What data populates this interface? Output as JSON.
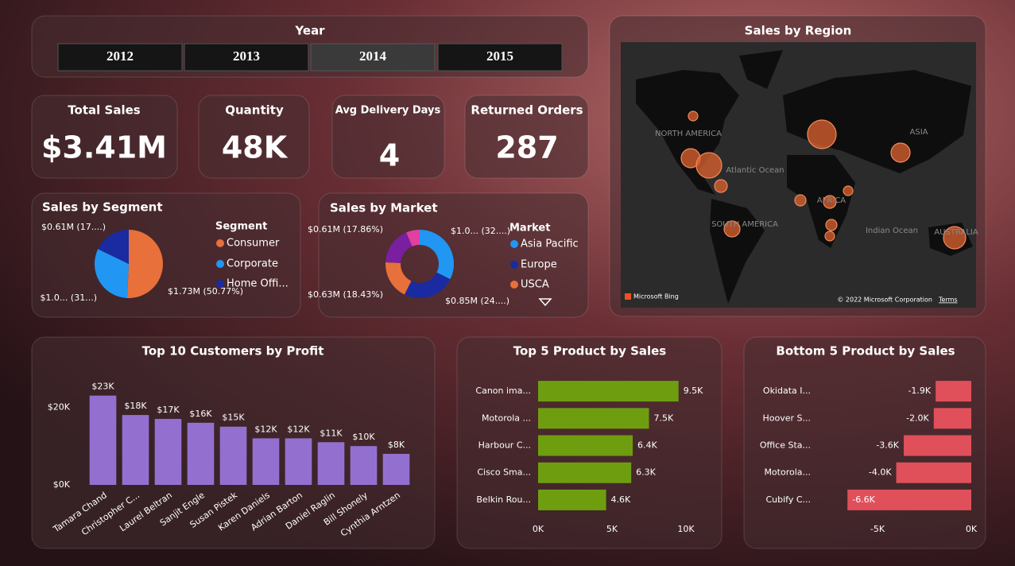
{
  "slicer": {
    "title": "Year",
    "options": [
      "2012",
      "2013",
      "2014",
      "2015"
    ],
    "selected_index": 2
  },
  "kpis": [
    {
      "title": "Total Sales",
      "value": "$3.41M"
    },
    {
      "title": "Quantity",
      "value": "48K"
    },
    {
      "title": "Avg Delivery Days",
      "value": "4"
    },
    {
      "title": "Returned Orders",
      "value": "287"
    }
  ],
  "map": {
    "title": "Sales by Region",
    "labels": [
      "NORTH AMERICA",
      "Atlantic Ocean",
      "ASIA",
      "AFRICA",
      "SOUTH AMERICA",
      "Indian Ocean",
      "AUSTRALIA"
    ],
    "attribution": "Microsoft Bing",
    "copyright": "© 2022 Microsoft Corporation",
    "terms": "Terms"
  },
  "chart_data": [
    {
      "type": "pie",
      "title": "Sales by Segment",
      "legend_title": "Segment",
      "categories": [
        "Consumer",
        "Corporate",
        "Home Offi..."
      ],
      "values": [
        50.77,
        31.4,
        17.83
      ],
      "value_labels": [
        "$1.73M (50.77%)",
        "$1.0... (31...)",
        "$0.61M (17....)"
      ],
      "colors": [
        "#e8703a",
        "#2196f3",
        "#1a2aa0"
      ],
      "legend": "right"
    },
    {
      "type": "donut",
      "title": "Sales by Market",
      "legend_title": "Market",
      "categories": [
        "Asia Pacific",
        "Europe",
        "USCA",
        null,
        null
      ],
      "values": [
        32.4,
        24.9,
        18.43,
        17.86,
        6.41
      ],
      "value_labels": [
        "$1.0... (32....)",
        "$0.85M (24....)",
        "$0.63M (18.43%)",
        "$0.61M (17.86%)",
        null
      ],
      "colors": [
        "#2196f3",
        "#1a2aa0",
        "#e8703a",
        "#7a1fa0",
        "#e040a0"
      ],
      "legend": "right"
    },
    {
      "type": "bar",
      "title": "Top 10 Customers by Profit",
      "categories": [
        "Tamara Chand",
        "Christopher C...",
        "Laurel Beltran",
        "Sanjit Engle",
        "Susan Pistek",
        "Karen Daniels",
        "Adrian Barton",
        "Daniel Raglin",
        "Bill Shonely",
        "Cynthia Arntzen"
      ],
      "values": [
        23,
        18,
        17,
        16,
        15,
        12,
        12,
        11,
        10,
        8
      ],
      "value_labels": [
        "$23K",
        "$18K",
        "$17K",
        "$16K",
        "$15K",
        "$12K",
        "$12K",
        "$11K",
        "$10K",
        "$8K"
      ],
      "color": "#9370d0",
      "ylim": [
        0,
        26
      ],
      "yticks": [
        {
          "value": 0,
          "label": "$0K"
        },
        {
          "value": 20,
          "label": "$20K"
        }
      ],
      "grid": false
    },
    {
      "type": "hbar",
      "title": "Top 5 Product by Sales",
      "categories": [
        "Canon ima...",
        "Motorola ...",
        "Harbour C...",
        "Cisco Sma...",
        "Belkin Rou..."
      ],
      "values": [
        9.5,
        7.5,
        6.4,
        6.3,
        4.6
      ],
      "value_labels": [
        "9.5K",
        "7.5K",
        "6.4K",
        "6.3K",
        "4.6K"
      ],
      "color": "#6e9e10",
      "xlim": [
        0,
        11
      ],
      "xticks": [
        {
          "value": 0,
          "label": "0K"
        },
        {
          "value": 5,
          "label": "5K"
        },
        {
          "value": 10,
          "label": "10K"
        }
      ],
      "grid": false
    },
    {
      "type": "hbar",
      "title": "Bottom 5 Product by Sales",
      "categories": [
        "Okidata I...",
        "Hoover S...",
        "Office Sta...",
        "Motorola...",
        "Cubify C..."
      ],
      "values": [
        -1.9,
        -2.0,
        -3.6,
        -4.0,
        -6.6
      ],
      "value_labels": [
        "-1.9K",
        "-2.0K",
        "-3.6K",
        "-4.0K",
        "-6.6K"
      ],
      "color": "#e0505a",
      "xlim": [
        -6.8,
        0
      ],
      "xticks": [
        {
          "value": -5,
          "label": "-5K"
        },
        {
          "value": 0,
          "label": "0K"
        }
      ],
      "grid": false
    }
  ]
}
